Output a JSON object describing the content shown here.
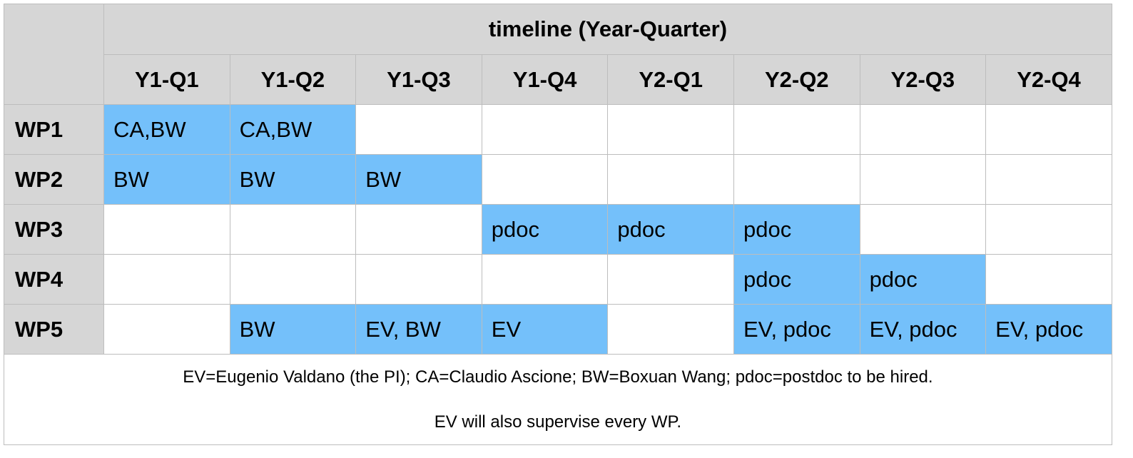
{
  "header": {
    "timeline_label": "timeline (Year-Quarter)",
    "quarters": [
      "Y1-Q1",
      "Y1-Q2",
      "Y1-Q3",
      "Y1-Q4",
      "Y2-Q1",
      "Y2-Q2",
      "Y2-Q3",
      "Y2-Q4"
    ]
  },
  "active_color": "#74c0fa",
  "rows": [
    {
      "label": "WP1",
      "cells": [
        {
          "text": "CA,BW",
          "active": true
        },
        {
          "text": "CA,BW",
          "active": true
        },
        {
          "text": "",
          "active": false
        },
        {
          "text": "",
          "active": false
        },
        {
          "text": "",
          "active": false
        },
        {
          "text": "",
          "active": false
        },
        {
          "text": "",
          "active": false
        },
        {
          "text": "",
          "active": false
        }
      ]
    },
    {
      "label": "WP2",
      "cells": [
        {
          "text": "BW",
          "active": true
        },
        {
          "text": "BW",
          "active": true
        },
        {
          "text": "BW",
          "active": true
        },
        {
          "text": "",
          "active": false
        },
        {
          "text": "",
          "active": false
        },
        {
          "text": "",
          "active": false
        },
        {
          "text": "",
          "active": false
        },
        {
          "text": "",
          "active": false
        }
      ]
    },
    {
      "label": "WP3",
      "cells": [
        {
          "text": "",
          "active": false
        },
        {
          "text": "",
          "active": false
        },
        {
          "text": "",
          "active": false
        },
        {
          "text": "pdoc",
          "active": true
        },
        {
          "text": "pdoc",
          "active": true
        },
        {
          "text": "pdoc",
          "active": true
        },
        {
          "text": "",
          "active": false
        },
        {
          "text": "",
          "active": false
        }
      ]
    },
    {
      "label": "WP4",
      "cells": [
        {
          "text": "",
          "active": false
        },
        {
          "text": "",
          "active": false
        },
        {
          "text": "",
          "active": false
        },
        {
          "text": "",
          "active": false
        },
        {
          "text": "",
          "active": false
        },
        {
          "text": "pdoc",
          "active": true
        },
        {
          "text": "pdoc",
          "active": true
        },
        {
          "text": "",
          "active": false
        }
      ]
    },
    {
      "label": "WP5",
      "cells": [
        {
          "text": "",
          "active": false
        },
        {
          "text": "BW",
          "active": true
        },
        {
          "text": "EV, BW",
          "active": true
        },
        {
          "text": "EV",
          "active": true
        },
        {
          "text": "",
          "active": false
        },
        {
          "text": "EV, pdoc",
          "active": true
        },
        {
          "text": "EV, pdoc",
          "active": true
        },
        {
          "text": "EV, pdoc",
          "active": true
        }
      ]
    }
  ],
  "notes": {
    "line1": "EV=Eugenio Valdano (the PI); CA=Claudio Ascione; BW=Boxuan Wang; pdoc=postdoc to be hired.",
    "line2": "EV will also supervise every WP."
  }
}
